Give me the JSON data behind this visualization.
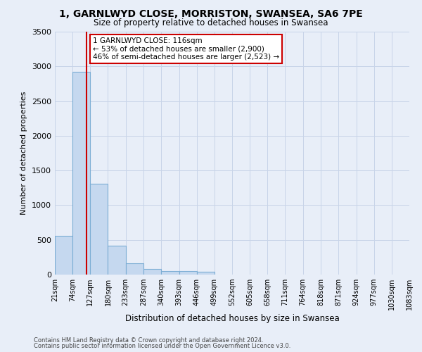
{
  "title_line1": "1, GARNLWYD CLOSE, MORRISTON, SWANSEA, SA6 7PE",
  "title_line2": "Size of property relative to detached houses in Swansea",
  "xlabel": "Distribution of detached houses by size in Swansea",
  "ylabel": "Number of detached properties",
  "footer_line1": "Contains HM Land Registry data © Crown copyright and database right 2024.",
  "footer_line2": "Contains public sector information licensed under the Open Government Licence v3.0.",
  "annotation_line1": "1 GARNLWYD CLOSE: 116sqm",
  "annotation_line2": "← 53% of detached houses are smaller (2,900)",
  "annotation_line3": "46% of semi-detached houses are larger (2,523) →",
  "property_size": 116,
  "bin_edges": [
    21,
    74,
    127,
    180,
    233,
    287,
    340,
    393,
    446,
    499,
    552,
    605,
    658,
    711,
    764,
    818,
    871,
    924,
    977,
    1030,
    1083
  ],
  "bar_heights": [
    560,
    2920,
    1310,
    415,
    160,
    80,
    55,
    50,
    40,
    0,
    0,
    0,
    0,
    0,
    0,
    0,
    0,
    0,
    0,
    0
  ],
  "bar_color": "#c5d8ef",
  "bar_edge_color": "#7badd4",
  "vline_color": "#cc0000",
  "grid_color": "#c8d4e8",
  "background_color": "#e8eef8",
  "ylim": [
    0,
    3500
  ],
  "yticks": [
    0,
    500,
    1000,
    1500,
    2000,
    2500,
    3000,
    3500
  ]
}
